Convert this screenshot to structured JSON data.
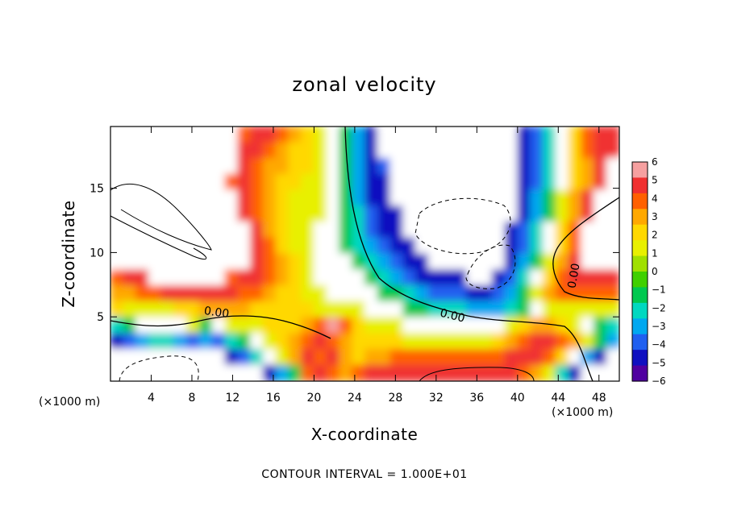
{
  "chart_data": {
    "type": "heatmap",
    "title": "zonal velocity",
    "xlabel": "X-coordinate",
    "ylabel": "Z-coordinate",
    "x_unit_left": "(×1000 m)",
    "x_unit_right": "(×1000 m)",
    "xlim": [
      0,
      50
    ],
    "ylim": [
      0,
      19.8
    ],
    "x_ticks": [
      4,
      8,
      12,
      16,
      20,
      24,
      28,
      32,
      36,
      40,
      44,
      48
    ],
    "y_ticks": [
      5,
      10,
      15
    ],
    "colorbar": {
      "range": [
        -6,
        6
      ],
      "ticks": [
        6,
        5,
        4,
        3,
        2,
        1,
        0,
        -1,
        -2,
        -3,
        -4,
        -5,
        -6
      ],
      "colors": [
        "#f6a0a0",
        "#f03030",
        "#ff6000",
        "#ffa800",
        "#ffd800",
        "#e8f000",
        "#a0e000",
        "#40d000",
        "#00c850",
        "#00d8c0",
        "#00a8f0",
        "#2060f0",
        "#1010c0",
        "#5000a0"
      ]
    },
    "contour_interval_text": "CONTOUR INTERVAL = 1.000E+01",
    "contour_labels": [
      "0.00",
      "0.00",
      "0.00"
    ],
    "field": [
      [
        0,
        0,
        0,
        0,
        0,
        0,
        0,
        0,
        0,
        0,
        4,
        5,
        5,
        4,
        3,
        2,
        1,
        0,
        -1,
        -3,
        -5,
        0,
        0,
        0,
        0,
        0,
        0,
        0,
        0,
        0,
        0,
        0,
        -5,
        -4,
        -2,
        0,
        2,
        4,
        5,
        5
      ],
      [
        0,
        0,
        0,
        0,
        0,
        0,
        0,
        0,
        0,
        0,
        5,
        5,
        4,
        3,
        2,
        2,
        1,
        0,
        -1,
        -3,
        -5,
        0,
        0,
        0,
        0,
        0,
        0,
        0,
        0,
        0,
        0,
        0,
        -5,
        -4,
        -2,
        0,
        2,
        4,
        5,
        5
      ],
      [
        0,
        0,
        0,
        0,
        0,
        0,
        0,
        0,
        0,
        0,
        5,
        4,
        3,
        3,
        2,
        2,
        1,
        0,
        -1,
        -3,
        -5,
        -4,
        0,
        0,
        0,
        0,
        0,
        0,
        0,
        0,
        0,
        0,
        -5,
        -4,
        -2,
        0,
        2,
        3,
        5,
        0
      ],
      [
        0,
        0,
        0,
        0,
        0,
        0,
        0,
        0,
        0,
        4,
        5,
        4,
        3,
        2,
        2,
        1,
        1,
        0,
        -1,
        -3,
        -5,
        -5,
        0,
        0,
        0,
        0,
        0,
        0,
        0,
        0,
        0,
        0,
        -5,
        -4,
        -2,
        0,
        2,
        3,
        5,
        0
      ],
      [
        0,
        0,
        0,
        0,
        0,
        0,
        0,
        0,
        0,
        0,
        5,
        4,
        3,
        2,
        1,
        1,
        1,
        0,
        -1,
        -3,
        -5,
        -5,
        0,
        0,
        0,
        0,
        0,
        0,
        0,
        0,
        0,
        0,
        -5,
        -3,
        -1,
        1,
        3,
        5,
        0,
        0
      ],
      [
        0,
        0,
        0,
        0,
        0,
        0,
        0,
        0,
        0,
        0,
        5,
        4,
        3,
        2,
        1,
        1,
        1,
        0,
        -1,
        -2,
        -4,
        -5,
        -5,
        0,
        0,
        0,
        0,
        0,
        0,
        0,
        0,
        0,
        -5,
        -3,
        -1,
        1,
        3,
        5,
        0,
        0
      ],
      [
        0,
        0,
        0,
        0,
        0,
        0,
        0,
        0,
        0,
        0,
        0,
        5,
        3,
        2,
        1,
        1,
        0,
        0,
        -1,
        -2,
        -4,
        -5,
        -5,
        0,
        0,
        0,
        0,
        0,
        0,
        0,
        0,
        -5,
        -4,
        -2,
        0,
        2,
        4,
        0,
        0,
        0
      ],
      [
        0,
        0,
        0,
        0,
        0,
        0,
        0,
        0,
        0,
        0,
        0,
        5,
        4,
        2,
        1,
        1,
        0,
        0,
        -1,
        -2,
        -3,
        -4,
        -5,
        -5,
        0,
        0,
        0,
        0,
        0,
        0,
        0,
        -5,
        -4,
        -2,
        0,
        2,
        4,
        0,
        0,
        0
      ],
      [
        0,
        0,
        0,
        0,
        0,
        0,
        0,
        0,
        0,
        0,
        0,
        5,
        4,
        3,
        2,
        1,
        0,
        0,
        0,
        -1,
        -2,
        -3,
        -4,
        -5,
        -5,
        0,
        0,
        0,
        0,
        0,
        0,
        -5,
        -3,
        -1,
        1,
        3,
        5,
        0,
        0,
        0
      ],
      [
        4,
        5,
        5,
        0,
        0,
        0,
        0,
        0,
        0,
        4,
        5,
        5,
        4,
        3,
        2,
        1,
        0,
        0,
        0,
        0,
        -1,
        -2,
        -3,
        -4,
        -5,
        -5,
        -5,
        -5,
        0,
        0,
        -5,
        -4,
        -2,
        0,
        2,
        4,
        5,
        5,
        5,
        5
      ],
      [
        3,
        3,
        4,
        4,
        5,
        5,
        5,
        5,
        5,
        5,
        4,
        4,
        3,
        2,
        2,
        1,
        1,
        0,
        0,
        0,
        0,
        -1,
        -1,
        -2,
        -3,
        -4,
        -4,
        -4,
        -5,
        -5,
        -4,
        -3,
        -1,
        1,
        3,
        4,
        4,
        4,
        4,
        4
      ],
      [
        2,
        1,
        1,
        1,
        1,
        2,
        2,
        3,
        3,
        3,
        3,
        2,
        2,
        2,
        2,
        2,
        1,
        1,
        1,
        1,
        0,
        0,
        0,
        -1,
        -1,
        -2,
        -2,
        -2,
        -3,
        -3,
        -3,
        -2,
        -1,
        0,
        1,
        1,
        1,
        1,
        1,
        1
      ],
      [
        -2,
        -1,
        0,
        0,
        0,
        0,
        1,
        -1,
        0,
        1,
        1,
        1,
        2,
        2,
        2,
        3,
        4,
        6,
        4,
        2,
        1,
        1,
        1,
        0,
        0,
        0,
        0,
        0,
        0,
        0,
        0,
        1,
        2,
        3,
        3,
        2,
        1,
        0,
        -1,
        -2
      ],
      [
        -5,
        -4,
        -3,
        -2,
        -2,
        -3,
        -4,
        -3,
        -4,
        -2,
        -1,
        0,
        1,
        2,
        3,
        4,
        5,
        4,
        3,
        2,
        2,
        2,
        2,
        1,
        1,
        1,
        1,
        1,
        1,
        1,
        2,
        3,
        4,
        5,
        5,
        4,
        3,
        1,
        -1,
        -3
      ],
      [
        0,
        0,
        0,
        0,
        0,
        0,
        0,
        0,
        0,
        -5,
        -4,
        -2,
        0,
        1,
        3,
        5,
        4,
        5,
        3,
        2,
        3,
        3,
        4,
        4,
        4,
        4,
        4,
        4,
        4,
        4,
        4,
        5,
        5,
        5,
        4,
        2,
        0,
        -3,
        -5,
        0
      ],
      [
        0,
        0,
        0,
        0,
        0,
        0,
        0,
        0,
        0,
        0,
        0,
        0,
        -5,
        -3,
        -1,
        4,
        5,
        4,
        3,
        4,
        5,
        5,
        5,
        5,
        5,
        5,
        5,
        5,
        5,
        5,
        5,
        5,
        4,
        3,
        1,
        -2,
        -5,
        0,
        0,
        0
      ]
    ]
  }
}
